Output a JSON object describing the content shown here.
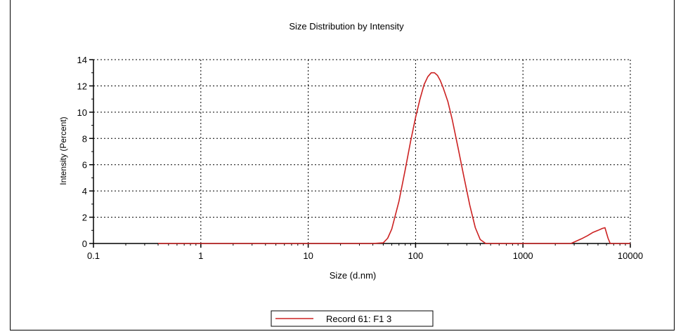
{
  "chart_data": {
    "type": "line",
    "title": "Size Distribution by Intensity",
    "xlabel": "Size (d.nm)",
    "ylabel": "Intensity (Percent)",
    "xscale": "log",
    "xlim": [
      0.1,
      10000
    ],
    "ylim": [
      0,
      14
    ],
    "x_ticks": [
      0.1,
      1,
      10,
      100,
      1000,
      10000
    ],
    "x_tick_labels": [
      "0.1",
      "1",
      "10",
      "100",
      "1000",
      "10000"
    ],
    "y_ticks": [
      0,
      2,
      4,
      6,
      8,
      10,
      12,
      14
    ],
    "y_tick_labels": [
      "0",
      "2",
      "4",
      "6",
      "8",
      "10",
      "12",
      "14"
    ],
    "grid": true,
    "legend_position": "bottom-center",
    "series": [
      {
        "name": "Record 61: F1 3",
        "color": "#cc2222",
        "x": [
          0.4,
          1,
          10,
          40,
          50,
          55,
          60,
          70,
          80,
          90,
          100,
          110,
          120,
          130,
          140,
          150,
          160,
          170,
          180,
          200,
          220,
          250,
          280,
          320,
          360,
          400,
          450,
          1000,
          2800,
          3500,
          4000,
          4500,
          5000,
          5500,
          5800,
          6200,
          6500,
          10000
        ],
        "y": [
          0,
          0,
          0,
          0,
          0.05,
          0.4,
          1.1,
          3.2,
          5.6,
          7.8,
          9.6,
          11.0,
          12.1,
          12.7,
          13.0,
          13.0,
          12.8,
          12.4,
          11.9,
          10.8,
          9.4,
          7.2,
          5.2,
          2.9,
          1.2,
          0.3,
          0,
          0,
          0,
          0.35,
          0.6,
          0.85,
          1.0,
          1.15,
          1.2,
          0.4,
          0,
          0
        ]
      }
    ]
  }
}
